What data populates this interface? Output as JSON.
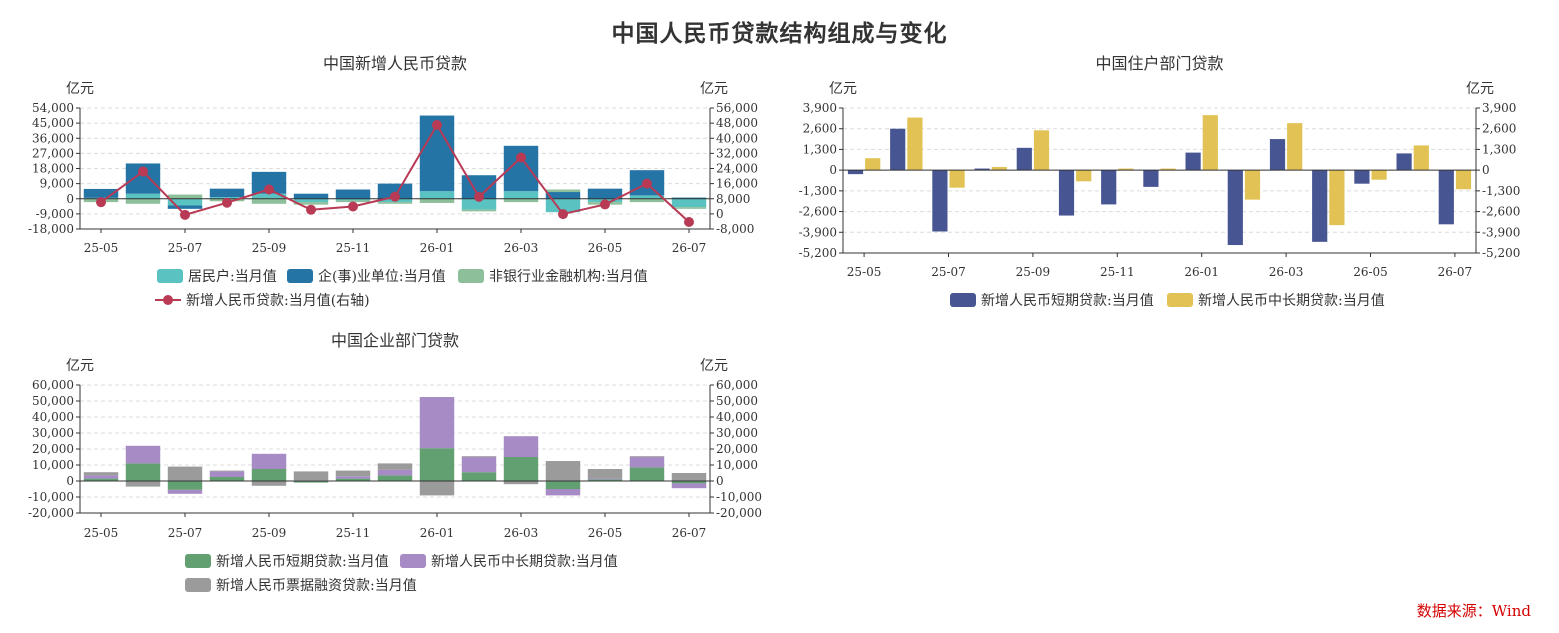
{
  "page": {
    "title": "中国人民币贷款结构组成与变化",
    "source": "数据来源：Wind"
  },
  "chart_data": [
    {
      "id": "total",
      "type": "bar",
      "title": "中国新增人民币贷款",
      "y_unit_left": "亿元",
      "y_unit_right": "亿元",
      "ylim_left": [
        -18000,
        54000
      ],
      "ylim_right": [
        -8000,
        56000
      ],
      "yticks_left": [
        -18000,
        -9000,
        0,
        9000,
        18000,
        27000,
        36000,
        45000,
        54000
      ],
      "yticks_right": [
        -8000,
        0,
        8000,
        16000,
        24000,
        32000,
        40000,
        48000,
        56000
      ],
      "categories": [
        "25-05",
        "25-06",
        "25-07",
        "25-08",
        "25-09",
        "25-10",
        "25-11",
        "25-12",
        "26-01",
        "26-02",
        "26-03",
        "26-04",
        "26-05",
        "26-06",
        "26-07"
      ],
      "xtick_labels": [
        "25-05",
        "25-07",
        "25-09",
        "25-11",
        "26-01",
        "26-03",
        "26-05",
        "26-07"
      ],
      "stacked": true,
      "series": [
        {
          "name": "居民户:当月值",
          "color": "#5bc2c2",
          "values": [
            540,
            3000,
            -4000,
            1000,
            3000,
            -2000,
            -1000,
            -2000,
            4500,
            -6500,
            4500,
            -8000,
            -2000,
            2000,
            -5000
          ]
        },
        {
          "name": "企(事)业单位:当月值",
          "color": "#2474a6",
          "values": [
            5300,
            18000,
            -2000,
            5000,
            13000,
            3000,
            5500,
            9000,
            45000,
            14000,
            27000,
            4000,
            6000,
            15000,
            700
          ]
        },
        {
          "name": "非银行业金融机构:当月值",
          "color": "#8dbf9b",
          "values": [
            -2000,
            -3000,
            2500,
            -1500,
            -3000,
            -1500,
            -1000,
            -1000,
            -2500,
            -1000,
            -2000,
            1500,
            -1500,
            -2000,
            -1000
          ]
        }
      ],
      "line": {
        "name": "新增人民币贷款:当月值(右轴)",
        "color": "#b83a55",
        "axis": "right",
        "values": [
          6200,
          22400,
          -500,
          5900,
          12900,
          2200,
          3900,
          9100,
          47000,
          9000,
          29800,
          -100,
          5000,
          16000,
          -4300
        ]
      },
      "legend_rows": [
        [
          "居民户:当月值",
          "企(事)业单位:当月值",
          "非银行业金融机构:当月值"
        ],
        [
          "新增人民币贷款:当月值(右轴)"
        ]
      ]
    },
    {
      "id": "household",
      "type": "bar",
      "title": "中国住户部门贷款",
      "y_unit_left": "亿元",
      "y_unit_right": "亿元",
      "ylim_left": [
        -5200,
        3900
      ],
      "ylim_right": [
        -5200,
        3900
      ],
      "yticks_left": [
        -5200,
        -3900,
        -2600,
        -1300,
        0,
        1300,
        2600,
        3900
      ],
      "yticks_right": [
        -5200,
        -3900,
        -2600,
        -1300,
        0,
        1300,
        2600,
        3900
      ],
      "categories": [
        "25-05",
        "25-06",
        "25-07",
        "25-08",
        "25-09",
        "25-10",
        "25-11",
        "25-12",
        "26-01",
        "26-02",
        "26-03",
        "26-04",
        "26-05",
        "26-06",
        "26-07"
      ],
      "xtick_labels": [
        "25-05",
        "25-07",
        "25-09",
        "25-11",
        "26-01",
        "26-03",
        "26-05",
        "26-07"
      ],
      "stacked": false,
      "series": [
        {
          "name": "新增人民币短期贷款:当月值",
          "color": "#475592",
          "values": [
            -250,
            2600,
            -3850,
            100,
            1400,
            -2850,
            -2150,
            -1050,
            1100,
            -4700,
            1950,
            -4500,
            -850,
            1050,
            -3400
          ]
        },
        {
          "name": "新增人民币中长期贷款:当月值",
          "color": "#e2c254",
          "values": [
            750,
            3300,
            -1100,
            200,
            2500,
            -700,
            100,
            100,
            3450,
            -1850,
            2950,
            -3450,
            -600,
            1550,
            -1200
          ]
        }
      ],
      "legend_rows": [
        [
          "新增人民币短期贷款:当月值",
          "新增人民币中长期贷款:当月值"
        ]
      ]
    },
    {
      "id": "enterprise",
      "type": "bar",
      "title": "中国企业部门贷款",
      "y_unit_left": "亿元",
      "y_unit_right": "亿元",
      "ylim_left": [
        -20000,
        60000
      ],
      "ylim_right": [
        -20000,
        60000
      ],
      "yticks_left": [
        -20000,
        -10000,
        0,
        10000,
        20000,
        30000,
        40000,
        50000,
        60000
      ],
      "yticks_right": [
        -20000,
        -10000,
        0,
        10000,
        20000,
        30000,
        40000,
        50000,
        60000
      ],
      "categories": [
        "25-05",
        "25-06",
        "25-07",
        "25-08",
        "25-09",
        "25-10",
        "25-11",
        "25-12",
        "26-01",
        "26-02",
        "26-03",
        "26-04",
        "26-05",
        "26-06",
        "26-07"
      ],
      "xtick_labels": [
        "25-05",
        "25-07",
        "25-09",
        "25-11",
        "26-01",
        "26-03",
        "26-05",
        "26-07"
      ],
      "stacked": true,
      "series": [
        {
          "name": "新增人民币短期贷款:当月值",
          "color": "#62a072",
          "values": [
            1500,
            11000,
            -5500,
            2500,
            7500,
            -1000,
            1500,
            3500,
            20500,
            5500,
            15000,
            -5000,
            1000,
            8500,
            -1500
          ]
        },
        {
          "name": "新增人民币中长期贷款:当月值",
          "color": "#a68bc5",
          "values": [
            2000,
            11000,
            -2500,
            3500,
            9500,
            500,
            1500,
            3500,
            32000,
            9500,
            13000,
            -4000,
            500,
            6500,
            -3000
          ]
        },
        {
          "name": "新增人民币票据融资贷款:当月值",
          "color": "#9b9b9b",
          "values": [
            2000,
            -3500,
            9000,
            500,
            -3000,
            5500,
            3500,
            4000,
            -9000,
            500,
            -2000,
            12500,
            6000,
            500,
            5000
          ]
        }
      ],
      "legend_rows": [
        [
          "新增人民币短期贷款:当月值",
          "新增人民币中长期贷款:当月值"
        ],
        [
          "新增人民币票据融资贷款:当月值"
        ]
      ]
    }
  ]
}
